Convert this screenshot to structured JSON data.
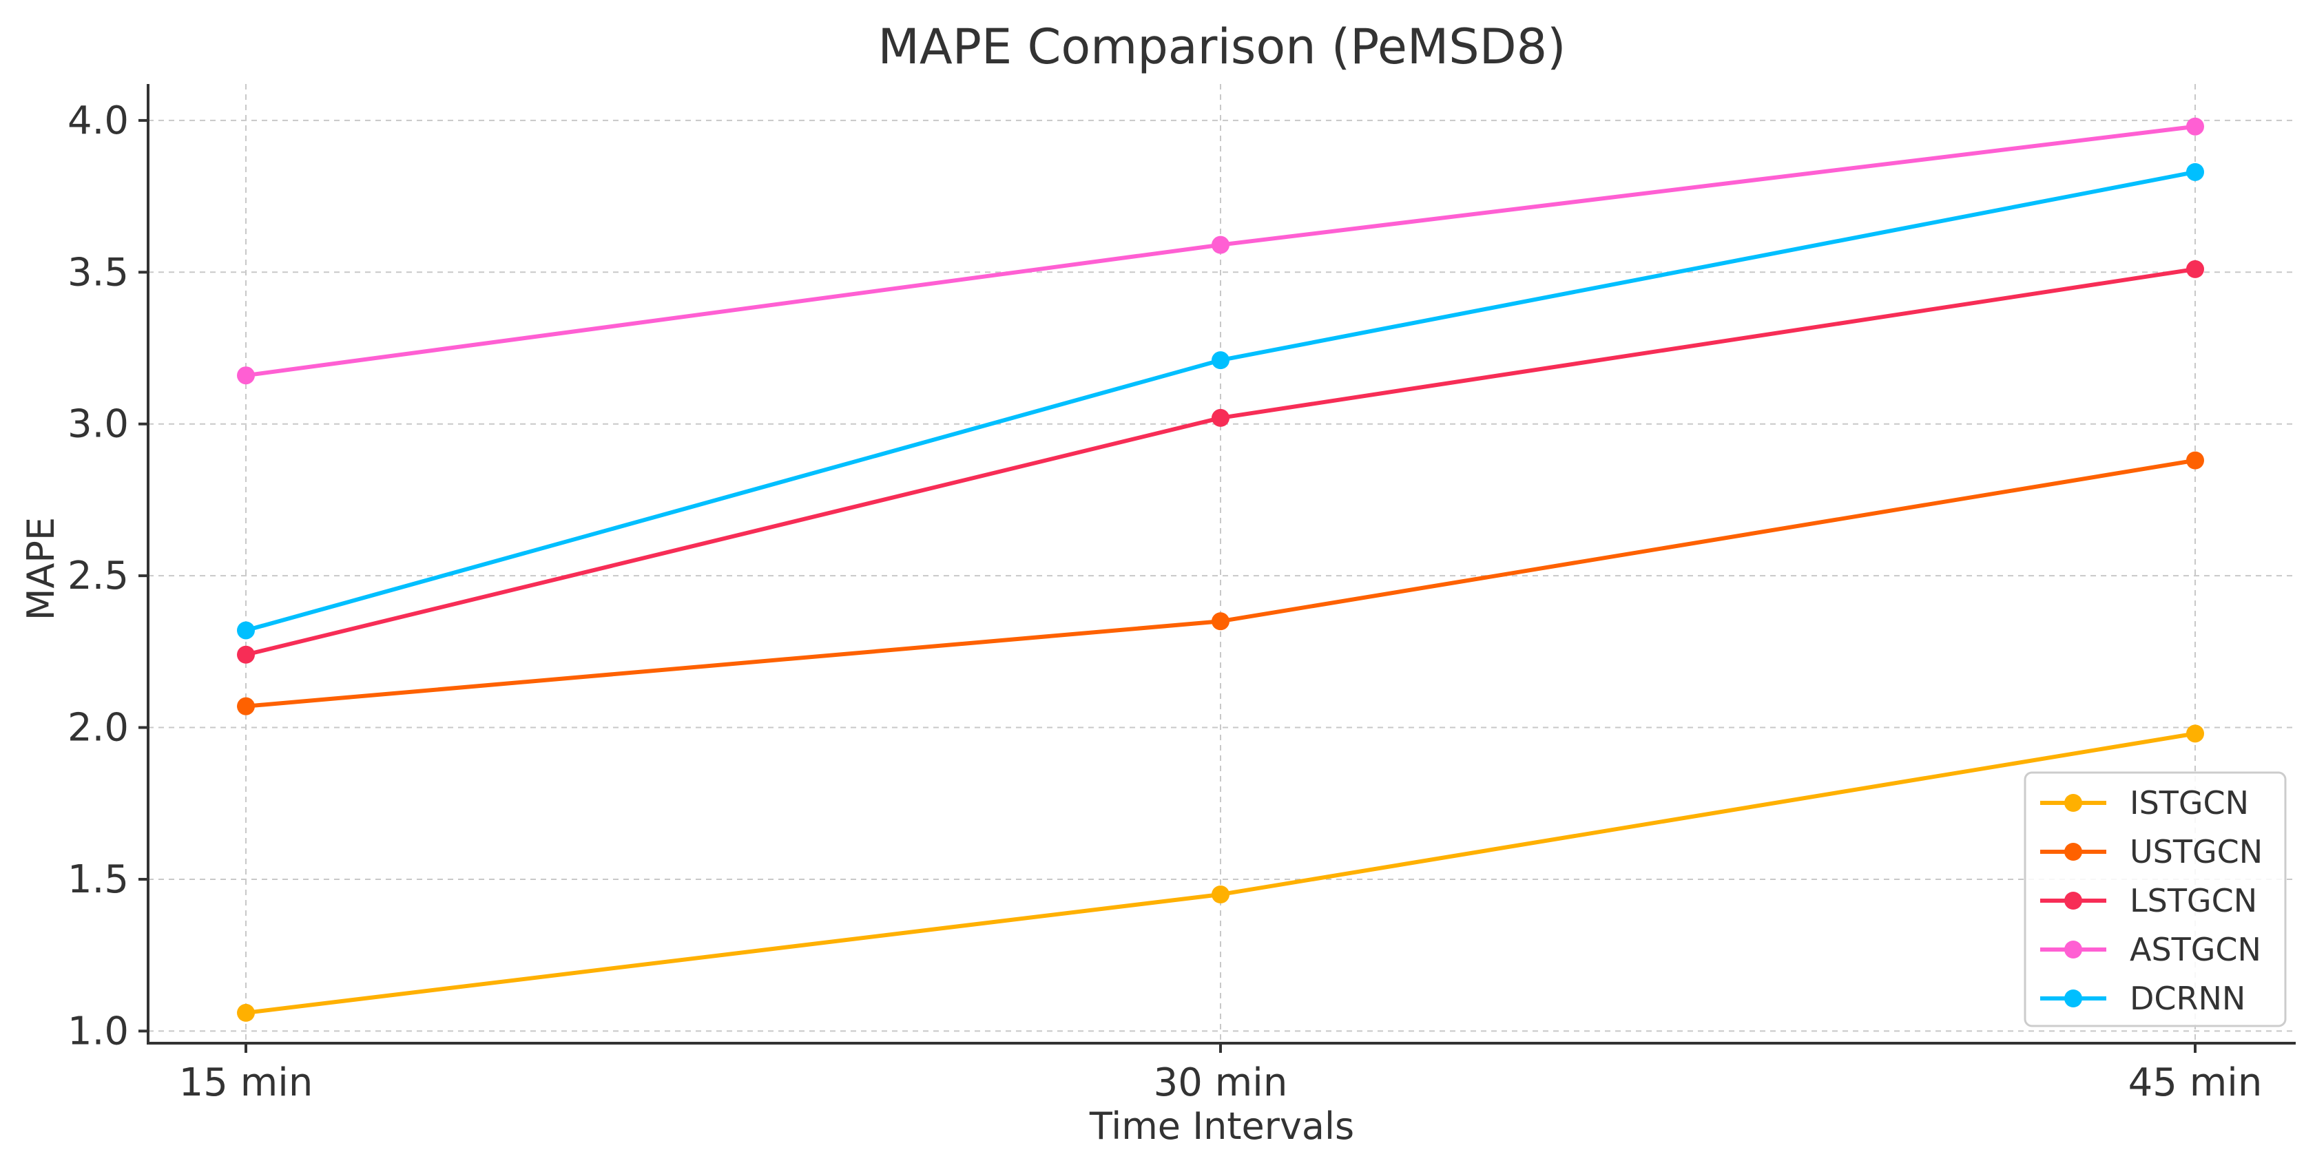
{
  "chart_data": {
    "type": "line",
    "title": "MAPE Comparison (PeMSD8)",
    "xlabel": "Time Intervals",
    "ylabel": "MAPE",
    "categories": [
      "15 min",
      "30 min",
      "45 min"
    ],
    "ylim": [
      0.96,
      4.12
    ],
    "yticks": [
      1.0,
      1.5,
      2.0,
      2.5,
      3.0,
      3.5,
      4.0
    ],
    "ytick_labels": [
      "1.0",
      "1.5",
      "2.0",
      "2.5",
      "3.0",
      "3.5",
      "4.0"
    ],
    "grid": true,
    "legend_position": "bottom-right",
    "series": [
      {
        "name": "ISTGCN",
        "color": "#FFB000",
        "values": [
          1.06,
          1.45,
          1.98
        ]
      },
      {
        "name": "USTGCN",
        "color": "#FE6100",
        "values": [
          2.07,
          2.35,
          2.88
        ]
      },
      {
        "name": "LSTGCN",
        "color": "#F72D56",
        "values": [
          2.24,
          3.02,
          3.51
        ]
      },
      {
        "name": "ASTGCN",
        "color": "#FF5FD3",
        "values": [
          3.16,
          3.59,
          3.98
        ]
      },
      {
        "name": "DCRNN",
        "color": "#00BFFF",
        "values": [
          2.32,
          3.21,
          3.83
        ]
      }
    ]
  }
}
